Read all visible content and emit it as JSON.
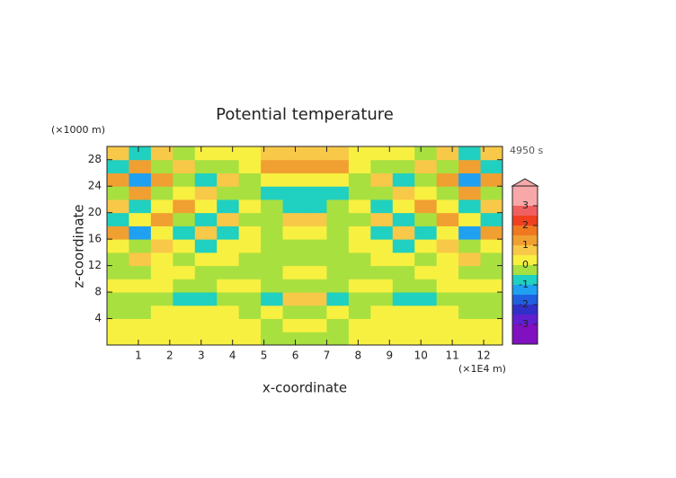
{
  "chart_data": {
    "type": "contour",
    "title": "Potential temperature",
    "x_label": "x-coordinate",
    "y_label": "z-coordinate",
    "x_unit": "(×1E4 m)",
    "y_unit": "(×1000 m)",
    "time_label": "4950 s",
    "xlim": [
      0,
      12.6
    ],
    "ylim": [
      0,
      30
    ],
    "xticks": [
      1,
      2,
      3,
      4,
      5,
      6,
      7,
      8,
      9,
      10,
      11,
      12
    ],
    "yticks": [
      4,
      8,
      12,
      16,
      20,
      24,
      28
    ],
    "x": [
      0.35,
      1.05,
      1.75,
      2.45,
      3.15,
      3.85,
      4.55,
      5.25,
      5.95,
      6.65,
      7.35,
      8.05,
      8.75,
      9.45,
      10.15,
      10.85,
      11.55,
      12.25
    ],
    "y": [
      1,
      3,
      5,
      7,
      9,
      11,
      13,
      15,
      17,
      19,
      21,
      23,
      25,
      27,
      29
    ],
    "z": [
      [
        0.3,
        0.3,
        0.3,
        0.3,
        0.3,
        0.3,
        0.2,
        -0.2,
        -0.3,
        -0.3,
        -0.2,
        0.2,
        0.3,
        0.3,
        0.3,
        0.3,
        0.3,
        0.3
      ],
      [
        0.3,
        0.3,
        0.3,
        0.3,
        0.3,
        0.2,
        0.2,
        -0.2,
        0.2,
        0.2,
        -0.2,
        0.2,
        0.2,
        0.3,
        0.3,
        0.3,
        0.3,
        0.3
      ],
      [
        -0.2,
        -0.2,
        0.2,
        0.2,
        0.2,
        0.2,
        -0.2,
        0.2,
        -0.2,
        -0.2,
        0.2,
        -0.2,
        0.2,
        0.2,
        0.2,
        0.2,
        -0.2,
        -0.2
      ],
      [
        -0.2,
        -0.2,
        -0.2,
        -0.6,
        -0.7,
        -0.3,
        -0.3,
        -0.6,
        0.7,
        0.7,
        -0.6,
        -0.3,
        -0.3,
        -0.7,
        -0.6,
        -0.2,
        -0.2,
        -0.2
      ],
      [
        0.2,
        0.2,
        0.2,
        -0.2,
        -0.2,
        0.2,
        0.2,
        -0.2,
        -0.2,
        -0.2,
        -0.2,
        0.2,
        0.2,
        -0.2,
        -0.2,
        0.2,
        0.2,
        0.2
      ],
      [
        -0.2,
        -0.2,
        0.2,
        0.2,
        -0.2,
        -0.2,
        -0.2,
        -0.2,
        0.2,
        0.2,
        -0.2,
        -0.2,
        -0.2,
        -0.2,
        0.2,
        0.2,
        -0.2,
        -0.2
      ],
      [
        -0.2,
        0.6,
        0.2,
        -0.2,
        0.2,
        0.3,
        -0.2,
        -0.2,
        -0.2,
        -0.2,
        -0.2,
        -0.2,
        0.3,
        0.2,
        -0.2,
        0.2,
        0.6,
        -0.2
      ],
      [
        0.3,
        -0.2,
        0.7,
        0.3,
        -0.6,
        0.2,
        0.2,
        -0.2,
        -0.2,
        -0.2,
        -0.2,
        0.2,
        0.2,
        -0.6,
        0.3,
        0.7,
        -0.2,
        0.3
      ],
      [
        1.1,
        -1.2,
        0.3,
        -0.8,
        0.7,
        -0.6,
        0.2,
        -0.2,
        0.2,
        0.2,
        -0.2,
        0.2,
        -0.6,
        0.7,
        -0.8,
        0.3,
        -1.2,
        1.1
      ],
      [
        -0.7,
        0.2,
        1.1,
        -0.2,
        -0.8,
        0.6,
        -0.3,
        -0.2,
        0.7,
        0.7,
        -0.2,
        -0.3,
        0.6,
        -0.8,
        -0.2,
        1.1,
        0.2,
        -0.7
      ],
      [
        0.6,
        -0.7,
        0.3,
        1.1,
        0.2,
        -0.6,
        0.2,
        -0.2,
        -0.8,
        -0.8,
        -0.2,
        0.2,
        -0.6,
        0.2,
        1.1,
        0.3,
        -0.7,
        0.6
      ],
      [
        -0.3,
        1.1,
        -0.2,
        0.3,
        0.9,
        -0.2,
        -0.2,
        -0.6,
        -0.8,
        -0.8,
        -0.6,
        -0.2,
        -0.2,
        0.9,
        0.3,
        -0.2,
        1.1,
        -0.3
      ],
      [
        1.2,
        -1.2,
        1.1,
        -0.2,
        -0.6,
        0.6,
        -0.2,
        0.2,
        0.3,
        0.3,
        0.2,
        -0.2,
        0.6,
        -0.6,
        -0.2,
        1.1,
        -1.2,
        1.2
      ],
      [
        -0.6,
        1.2,
        -0.3,
        0.7,
        -0.2,
        -0.2,
        0.3,
        1.1,
        1.2,
        1.2,
        1.1,
        0.3,
        -0.2,
        -0.2,
        0.7,
        -0.3,
        1.2,
        -0.6
      ],
      [
        0.7,
        -0.8,
        0.6,
        -0.2,
        0.3,
        0.2,
        0.3,
        0.7,
        0.8,
        0.8,
        0.7,
        0.3,
        0.2,
        0.3,
        -0.2,
        0.6,
        -0.8,
        0.7
      ]
    ],
    "levels": [
      -3.5,
      -3,
      -2.5,
      -2,
      -1.5,
      -1,
      -0.5,
      0,
      0.5,
      1,
      1.5,
      2,
      2.5,
      3,
      3.5
    ],
    "colors": [
      "#8010c0",
      "#6020d0",
      "#3030c8",
      "#2060e0",
      "#20a0f0",
      "#20d0c0",
      "#a8e040",
      "#f8f040",
      "#f8c848",
      "#f0a030",
      "#f07820",
      "#f04020",
      "#f06060",
      "#f8a8a8"
    ],
    "clim": [
      -4,
      4
    ],
    "cbar_ticks": [
      -3,
      -2,
      -1,
      0,
      1,
      2,
      3
    ]
  }
}
